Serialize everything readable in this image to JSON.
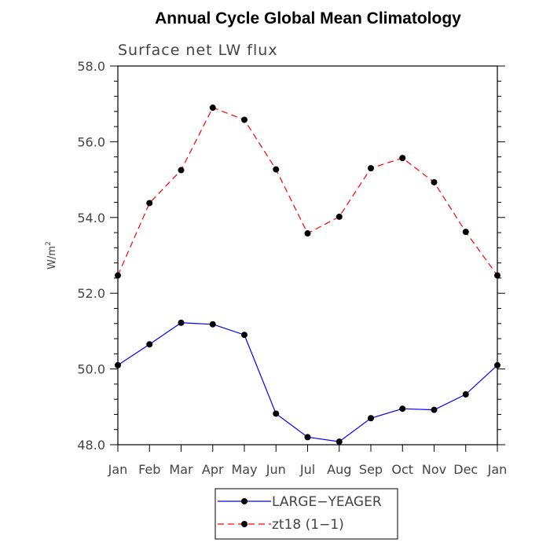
{
  "chart_data": {
    "type": "line",
    "title": "Annual Cycle Global Mean Climatology",
    "subtitle": "Surface net LW flux",
    "xlabel": "",
    "ylabel": "W/m",
    "ylabel_superscript": "2",
    "categories": [
      "Jan",
      "Feb",
      "Mar",
      "Apr",
      "May",
      "Jun",
      "Jul",
      "Aug",
      "Sep",
      "Oct",
      "Nov",
      "Dec",
      "Jan"
    ],
    "ylim": [
      48.0,
      58.0
    ],
    "yticks": [
      "48.0",
      "50.0",
      "52.0",
      "54.0",
      "56.0",
      "58.0"
    ],
    "ytick_values": [
      48,
      50,
      52,
      54,
      56,
      58
    ],
    "grid": false,
    "legend_position": "bottom-center",
    "series": [
      {
        "name": "LARGE−YEAGER",
        "color": "#0000ff",
        "dash": "solid",
        "marker": "circle",
        "values": [
          50.1,
          50.65,
          51.22,
          51.18,
          50.9,
          48.82,
          48.2,
          48.08,
          48.7,
          48.95,
          48.92,
          49.33,
          50.1
        ]
      },
      {
        "name": "zt18 (1−1)",
        "color": "#ff0000",
        "dash": "dashed",
        "marker": "circle",
        "values": [
          52.47,
          54.38,
          55.25,
          56.9,
          56.58,
          55.27,
          53.58,
          54.02,
          55.3,
          55.57,
          54.93,
          53.62,
          52.47
        ]
      }
    ]
  }
}
